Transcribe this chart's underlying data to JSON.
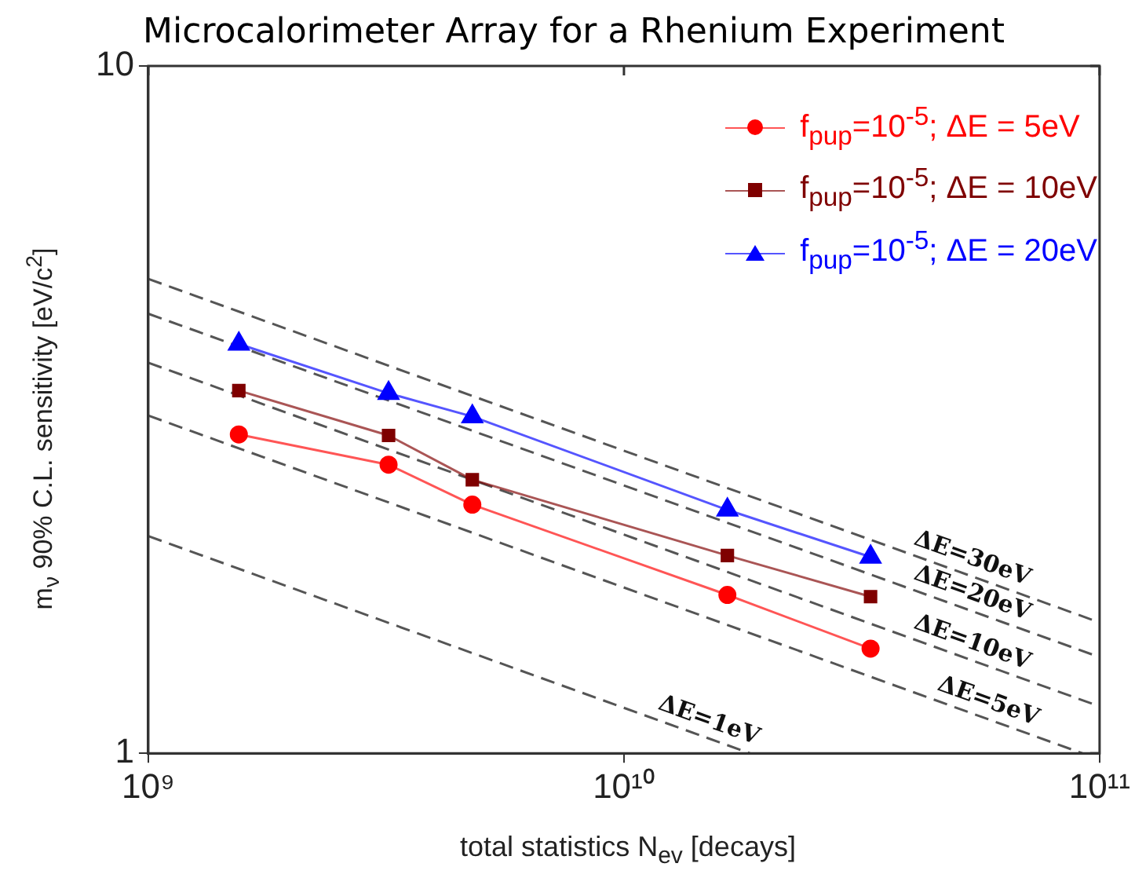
{
  "chart_data": {
    "type": "line",
    "title": "Microcalorimeter Array for a Rhenium Experiment",
    "xlabel": "total statistics N$_{ev}$ [decays]",
    "ylabel": "m$_{ν}$ 90% C.L. sensitivity [eV/c$^{2}$]",
    "log": "xy",
    "xlim": [
      1000000000.0,
      100000000000.0
    ],
    "ylim": [
      1,
      10
    ],
    "xticks": [
      {
        "value": 1000000000.0,
        "label": "10⁹"
      },
      {
        "value": 10000000000.0,
        "label": "10¹⁰"
      },
      {
        "value": 100000000000.0,
        "label": "10¹¹"
      }
    ],
    "yticks": [
      1,
      10
    ],
    "grid": false,
    "legend": "top right",
    "x": [
      1550000000.0,
      3200000000.0,
      4800000000.0,
      16500000000.0,
      33000000000.0
    ],
    "series": [
      {
        "name": "f$_{pup}$=10$^{-5}$; ΔE = 5eV",
        "color": "#ff0000",
        "marker": "circle",
        "line_style": "solid",
        "values": [
          2.91,
          2.63,
          2.3,
          1.7,
          1.42
        ]
      },
      {
        "name": "f$_{pup}$=10$^{-5}$; ΔE = 10eV",
        "color": "#7f0000",
        "marker": "square",
        "line_style": "solid",
        "values": [
          3.37,
          2.9,
          2.5,
          1.94,
          1.69
        ]
      },
      {
        "name": "f$_{pup}$=10$^{-5}$; ΔE = 20eV",
        "color": "#0000ff",
        "marker": "triangle",
        "line_style": "solid",
        "values": [
          3.94,
          3.34,
          3.09,
          2.26,
          1.93
        ]
      },
      {
        "name": "ΔE=30eV",
        "color": "#555555",
        "marker": "none",
        "line_style": "dashed",
        "x": [
          1000000000.0,
          100000000000.0
        ],
        "values": [
          4.9,
          1.55
        ]
      },
      {
        "name": "ΔE=20eV",
        "color": "#555555",
        "marker": "none",
        "line_style": "dashed",
        "x": [
          1000000000.0,
          100000000000.0
        ],
        "values": [
          4.36,
          1.38
        ]
      },
      {
        "name": "ΔE=10eV",
        "color": "#555555",
        "marker": "none",
        "line_style": "dashed",
        "x": [
          1000000000.0,
          100000000000.0
        ],
        "values": [
          3.7,
          1.17
        ]
      },
      {
        "name": "ΔE=5eV",
        "color": "#555555",
        "marker": "none",
        "line_style": "dashed",
        "x": [
          1000000000.0,
          92000000000.0
        ],
        "values": [
          3.1,
          1
        ]
      },
      {
        "name": "ΔE=1eV",
        "color": "#555555",
        "marker": "none",
        "line_style": "dashed",
        "x": [
          1000000000.0,
          18400000000.0
        ],
        "values": [
          2.07,
          1
        ]
      }
    ]
  }
}
